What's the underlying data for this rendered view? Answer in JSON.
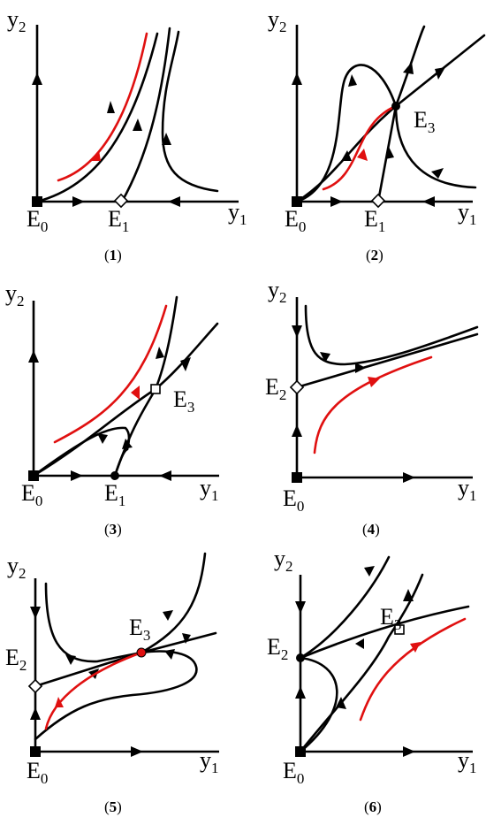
{
  "panels": [
    {
      "id": "1",
      "caption": "1",
      "y_axis": "y",
      "y_sub": "2",
      "x_axis": "y",
      "x_sub": "1",
      "points": [
        {
          "label": "E",
          "sub": "0"
        },
        {
          "label": "E",
          "sub": "1"
        }
      ]
    },
    {
      "id": "2",
      "caption": "2",
      "y_axis": "y",
      "y_sub": "2",
      "x_axis": "y",
      "x_sub": "1",
      "points": [
        {
          "label": "E",
          "sub": "0"
        },
        {
          "label": "E",
          "sub": "1"
        },
        {
          "label": "E",
          "sub": "3"
        }
      ]
    },
    {
      "id": "3",
      "caption": "3",
      "y_axis": "y",
      "y_sub": "2",
      "x_axis": "y",
      "x_sub": "1",
      "points": [
        {
          "label": "E",
          "sub": "0"
        },
        {
          "label": "E",
          "sub": "1"
        },
        {
          "label": "E",
          "sub": "3"
        }
      ]
    },
    {
      "id": "4",
      "caption": "4",
      "y_axis": "y",
      "y_sub": "2",
      "x_axis": "y",
      "x_sub": "1",
      "points": [
        {
          "label": "E",
          "sub": "0"
        },
        {
          "label": "E",
          "sub": "2"
        }
      ]
    },
    {
      "id": "5",
      "caption": "5",
      "y_axis": "y",
      "y_sub": "2",
      "x_axis": "y",
      "x_sub": "1",
      "points": [
        {
          "label": "E",
          "sub": "0"
        },
        {
          "label": "E",
          "sub": "2"
        },
        {
          "label": "E",
          "sub": "3"
        }
      ]
    },
    {
      "id": "6",
      "caption": "6",
      "y_axis": "y",
      "y_sub": "2",
      "x_axis": "y",
      "x_sub": "1",
      "points": [
        {
          "label": "E",
          "sub": "0"
        },
        {
          "label": "E",
          "sub": "2"
        },
        {
          "label": "E",
          "sub": "3"
        }
      ]
    }
  ],
  "colors": {
    "trajectory": "#000000",
    "highlight_trajectory": "#e01010"
  }
}
